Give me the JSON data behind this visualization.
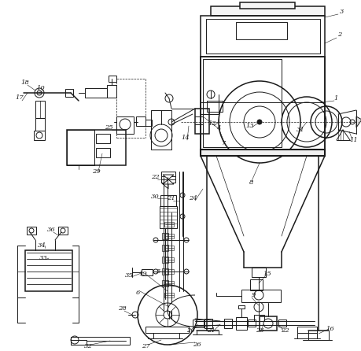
{
  "bg_color": "#ffffff",
  "line_color": "#1a1a1a",
  "lw": 0.7,
  "lw2": 1.1,
  "lw3": 1.5,
  "fs": 6.0
}
